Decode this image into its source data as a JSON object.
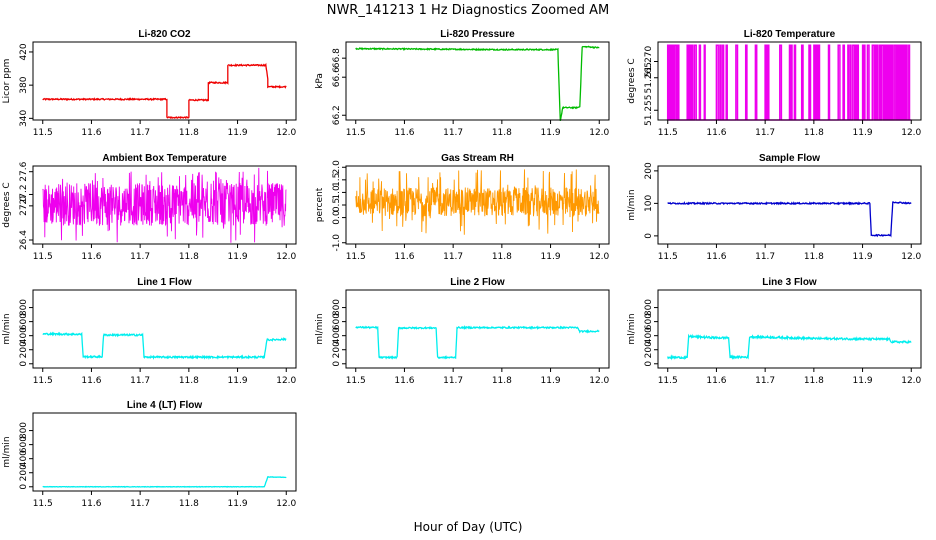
{
  "figure": {
    "title": "NWR_141213  1 Hz Diagnostics Zoomed AM",
    "xlabel": "Hour of Day (UTC)"
  },
  "chart_data": [
    {
      "type": "line",
      "title": "Li-820 CO2",
      "ylabel": "Licor ppm",
      "color": "#ee0000",
      "xlim": [
        11.48,
        12.02
      ],
      "ylim": [
        338,
        432
      ],
      "xticks": [
        "11.5",
        "11.6",
        "11.7",
        "11.8",
        "11.9",
        "12.0"
      ],
      "yticks": [
        "340",
        "380",
        "420"
      ],
      "series": [
        {
          "noise": 0.8,
          "x": [
            11.5,
            11.755,
            11.755,
            11.765,
            11.765,
            11.8,
            11.8,
            11.84,
            11.84,
            11.88,
            11.88,
            11.958,
            11.962,
            11.962,
            12.0
          ],
          "y": [
            363,
            363,
            341,
            341,
            341,
            341,
            362,
            362,
            383,
            383,
            404,
            404,
            388,
            378,
            378
          ]
        }
      ]
    },
    {
      "type": "line",
      "title": "Li-820 Pressure",
      "ylabel": "kPa",
      "color": "#00bb00",
      "xlim": [
        11.48,
        12.02
      ],
      "ylim": [
        66.15,
        66.97
      ],
      "xticks": [
        "11.5",
        "11.6",
        "11.7",
        "11.8",
        "11.9",
        "12.0"
      ],
      "yticks": [
        "66.2",
        "66.6",
        "66.8"
      ],
      "series": [
        {
          "noise": 0.006,
          "x": [
            11.5,
            11.8,
            11.9,
            11.915,
            11.92,
            11.925,
            11.955,
            11.96,
            11.965,
            11.975,
            12.0
          ],
          "y": [
            66.9,
            66.89,
            66.89,
            66.89,
            66.14,
            66.28,
            66.28,
            66.29,
            66.92,
            66.92,
            66.91
          ]
        }
      ]
    },
    {
      "type": "line",
      "title": "Li-820 Temperature",
      "ylabel": "degrees C",
      "color": "#ee00ee",
      "xlim": [
        11.48,
        12.02
      ],
      "ylim": [
        51.252,
        51.276
      ],
      "xticks": [
        "11.5",
        "11.6",
        "11.7",
        "11.8",
        "11.9",
        "12.0"
      ],
      "yticks": [
        "51.255",
        "51.265",
        "51.270"
      ],
      "series": [
        {
          "binary": [
            51.252,
            51.275
          ],
          "spikes": [
            11.5,
            11.505,
            11.51,
            11.515,
            11.52,
            11.54,
            11.545,
            11.55,
            11.555,
            11.565,
            11.575,
            11.6,
            11.607,
            11.613,
            11.62,
            11.64,
            11.66,
            11.68,
            11.7,
            11.705,
            11.73,
            11.75,
            11.752,
            11.76,
            11.775,
            11.79,
            11.8,
            11.805,
            11.81,
            11.83,
            11.85,
            11.86,
            11.87,
            11.875,
            11.88,
            11.885,
            11.89,
            11.9,
            11.902,
            11.91,
            11.92,
            11.925,
            11.93,
            11.935,
            11.94,
            11.945,
            11.95,
            11.955,
            11.96,
            11.965,
            11.97,
            11.975,
            11.98,
            11.985,
            11.99,
            11.995
          ]
        }
      ]
    },
    {
      "type": "line",
      "title": "Ambient Box Temperature",
      "ylabel": "degrees C",
      "color": "#ee00ee",
      "xlim": [
        11.48,
        12.02
      ],
      "ylim": [
        26.33,
        27.7
      ],
      "xticks": [
        "11.5",
        "11.6",
        "11.7",
        "11.8",
        "11.9",
        "12.0"
      ],
      "yticks": [
        "26.4",
        "27.0",
        "27.2",
        "27.6"
      ],
      "series": [
        {
          "band": [
            26.65,
            27.4
          ],
          "spread": [
            26.35,
            27.68
          ],
          "mid": 27.05
        }
      ]
    },
    {
      "type": "line",
      "title": "Gas Stream RH",
      "ylabel": "percent",
      "color": "#ff9900",
      "xlim": [
        11.48,
        12.02
      ],
      "ylim": [
        -1.05,
        2.05
      ],
      "xticks": [
        "11.5",
        "11.6",
        "11.7",
        "11.8",
        "11.9",
        "12.0"
      ],
      "yticks": [
        "-1.0",
        "0.0",
        "0.5",
        "1.0",
        "1.5",
        "2.0"
      ],
      "series": [
        {
          "band": [
            0.05,
            1.2
          ],
          "spread": [
            -0.7,
            1.95
          ],
          "mid": 0.6
        }
      ]
    },
    {
      "type": "line",
      "title": "Sample Flow",
      "ylabel": "ml/min",
      "color": "#0000cc",
      "xlim": [
        11.48,
        12.02
      ],
      "ylim": [
        -25,
        215
      ],
      "xticks": [
        "11.5",
        "11.6",
        "11.7",
        "11.8",
        "11.9",
        "12.0"
      ],
      "yticks": [
        "0",
        "100",
        "200"
      ],
      "series": [
        {
          "noise": 2,
          "x": [
            11.5,
            11.915,
            11.918,
            11.958,
            11.962,
            12.0
          ],
          "y": [
            100,
            100,
            2,
            2,
            104,
            100
          ]
        }
      ]
    },
    {
      "type": "line",
      "title": "Line 1 Flow",
      "ylabel": "ml/min",
      "color": "#00eeee",
      "xlim": [
        11.48,
        12.02
      ],
      "ylim": [
        -60,
        1050
      ],
      "xticks": [
        "11.5",
        "11.6",
        "11.7",
        "11.8",
        "11.9",
        "12.0"
      ],
      "yticks": [
        "0",
        "200",
        "400",
        "600",
        "800"
      ],
      "series": [
        {
          "noise": 12,
          "x": [
            11.5,
            11.58,
            11.583,
            11.622,
            11.625,
            11.705,
            11.708,
            11.955,
            11.96,
            12.0
          ],
          "y": [
            425,
            420,
            100,
            100,
            410,
            410,
            95,
            95,
            340,
            350
          ]
        }
      ]
    },
    {
      "type": "line",
      "title": "Line 2 Flow",
      "ylabel": "ml/min",
      "color": "#00eeee",
      "xlim": [
        11.48,
        12.02
      ],
      "ylim": [
        -60,
        1050
      ],
      "xticks": [
        "11.5",
        "11.6",
        "11.7",
        "11.8",
        "11.9",
        "12.0"
      ],
      "yticks": [
        "0",
        "200",
        "400",
        "600",
        "800"
      ],
      "series": [
        {
          "noise": 10,
          "x": [
            11.5,
            11.545,
            11.548,
            11.585,
            11.588,
            11.665,
            11.668,
            11.705,
            11.708,
            11.955,
            11.96,
            12.0
          ],
          "y": [
            520,
            515,
            90,
            90,
            510,
            510,
            90,
            90,
            515,
            515,
            460,
            465
          ]
        }
      ]
    },
    {
      "type": "line",
      "title": "Line 3 Flow",
      "ylabel": "ml/min",
      "color": "#00eeee",
      "xlim": [
        11.48,
        12.02
      ],
      "ylim": [
        -60,
        1050
      ],
      "xticks": [
        "11.5",
        "11.6",
        "11.7",
        "11.8",
        "11.9",
        "12.0"
      ],
      "yticks": [
        "0",
        "200",
        "400",
        "600",
        "800"
      ],
      "series": [
        {
          "noise": 14,
          "x": [
            11.5,
            11.54,
            11.543,
            11.6,
            11.625,
            11.628,
            11.665,
            11.668,
            11.8,
            11.955,
            11.96,
            12.0
          ],
          "y": [
            90,
            90,
            390,
            370,
            370,
            95,
            95,
            385,
            360,
            350,
            310,
            310
          ]
        }
      ]
    },
    {
      "type": "line",
      "title": "Line 4 (LT) Flow",
      "ylabel": "ml/min",
      "color": "#00eeee",
      "xlim": [
        11.48,
        12.02
      ],
      "ylim": [
        -60,
        1050
      ],
      "xticks": [
        "11.5",
        "11.6",
        "11.7",
        "11.8",
        "11.9",
        "12.0"
      ],
      "yticks": [
        "0",
        "200",
        "400",
        "600",
        "800"
      ],
      "series": [
        {
          "noise": 3,
          "x": [
            11.5,
            11.955,
            11.962,
            12.0
          ],
          "y": [
            0,
            0,
            140,
            135
          ]
        }
      ]
    }
  ]
}
